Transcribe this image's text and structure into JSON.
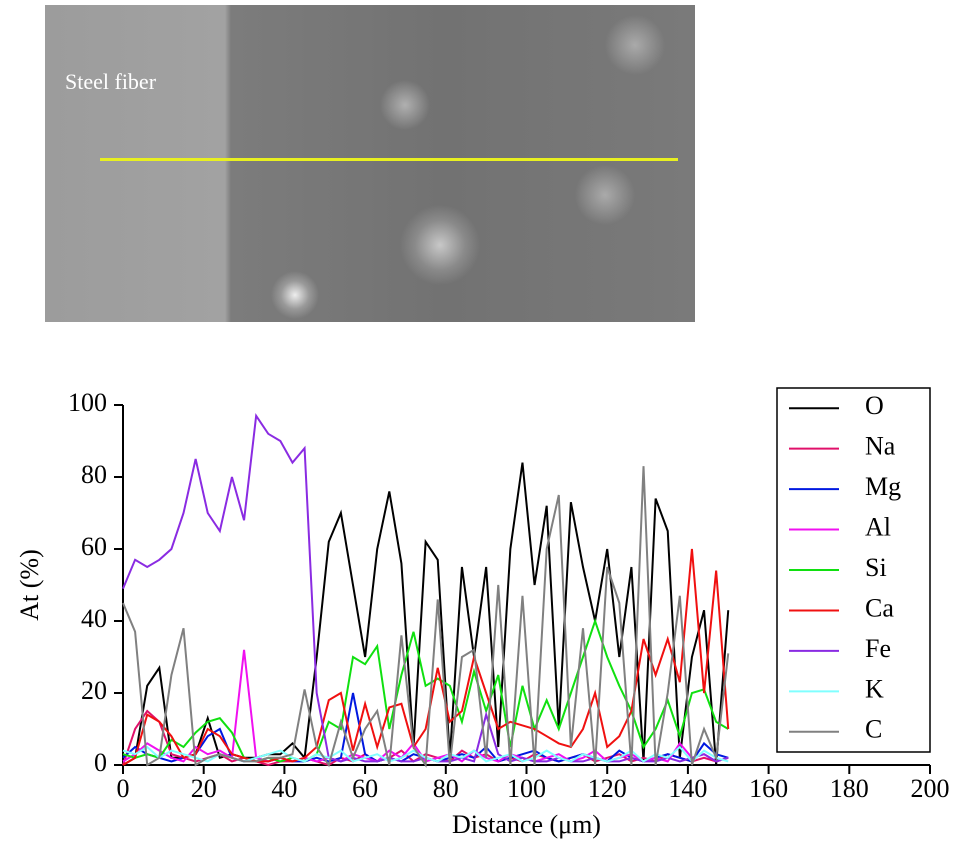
{
  "image": {
    "label": "Steel fiber"
  },
  "chart_data": {
    "type": "line",
    "xlabel": "Distance (μm)",
    "ylabel": "At (%)",
    "xlim": [
      0,
      200
    ],
    "xticks": [
      0,
      20,
      40,
      60,
      80,
      100,
      120,
      140,
      160,
      180,
      200
    ],
    "ylim": [
      0,
      100
    ],
    "yticks": [
      0,
      20,
      40,
      60,
      80,
      100
    ],
    "legend": "right",
    "x": [
      0,
      3,
      6,
      9,
      12,
      15,
      18,
      21,
      24,
      27,
      30,
      33,
      36,
      39,
      42,
      45,
      48,
      51,
      54,
      57,
      60,
      63,
      66,
      69,
      72,
      75,
      78,
      81,
      84,
      87,
      90,
      93,
      96,
      99,
      102,
      105,
      108,
      111,
      114,
      117,
      120,
      123,
      126,
      129,
      132,
      135,
      138,
      141,
      144,
      147,
      150
    ],
    "series": [
      {
        "name": "O",
        "color": "#000000",
        "values": [
          0,
          2,
          22,
          27,
          2,
          2,
          3,
          13,
          2,
          3,
          2,
          2,
          3,
          3,
          6,
          2,
          30,
          62,
          70,
          50,
          30,
          60,
          76,
          56,
          5,
          62,
          57,
          2,
          55,
          30,
          55,
          5,
          60,
          84,
          50,
          72,
          10,
          73,
          55,
          40,
          60,
          30,
          55,
          1,
          74,
          65,
          2,
          30,
          43,
          0,
          43
        ]
      },
      {
        "name": "Na",
        "color": "#e0106a",
        "values": [
          0,
          10,
          15,
          12,
          3,
          2,
          1,
          2,
          3,
          1,
          2,
          1,
          0,
          1,
          1,
          2,
          1,
          0,
          2,
          1,
          3,
          1,
          2,
          4,
          1,
          3,
          2,
          1,
          4,
          2,
          3,
          1,
          2,
          1,
          3,
          2,
          1,
          2,
          3,
          1,
          2,
          3,
          1,
          2,
          1,
          3,
          2,
          1,
          2,
          1,
          2
        ]
      },
      {
        "name": "Mg",
        "color": "#0018e0",
        "values": [
          2,
          5,
          3,
          2,
          1,
          2,
          3,
          8,
          10,
          2,
          1,
          2,
          1,
          2,
          1,
          1,
          2,
          1,
          2,
          20,
          3,
          1,
          2,
          1,
          3,
          2,
          1,
          2,
          3,
          2,
          5,
          1,
          2,
          3,
          4,
          2,
          1,
          2,
          3,
          2,
          1,
          4,
          2,
          1,
          2,
          3,
          2,
          1,
          6,
          3,
          2
        ]
      },
      {
        "name": "Al",
        "color": "#f010f0",
        "values": [
          1,
          3,
          6,
          4,
          2,
          1,
          5,
          3,
          4,
          2,
          32,
          2,
          1,
          2,
          1,
          2,
          1,
          2,
          1,
          3,
          2,
          1,
          4,
          2,
          6,
          1,
          2,
          3,
          1,
          4,
          2,
          1,
          3,
          2,
          1,
          2,
          3,
          1,
          2,
          4,
          1,
          2,
          3,
          1,
          2,
          1,
          6,
          2,
          3,
          1,
          2
        ]
      },
      {
        "name": "Si",
        "color": "#10e010",
        "values": [
          3,
          2,
          3,
          2,
          7,
          5,
          9,
          12,
          13,
          9,
          2,
          1,
          2,
          1,
          2,
          1,
          3,
          12,
          10,
          30,
          28,
          33,
          10,
          25,
          37,
          22,
          24,
          22,
          12,
          26,
          15,
          25,
          5,
          22,
          10,
          18,
          10,
          20,
          30,
          40,
          30,
          22,
          15,
          5,
          10,
          18,
          8,
          20,
          21,
          12,
          10
        ]
      },
      {
        "name": "Ca",
        "color": "#f01010",
        "values": [
          0,
          2,
          14,
          12,
          8,
          2,
          3,
          10,
          8,
          3,
          2,
          1,
          1,
          2,
          1,
          2,
          5,
          18,
          20,
          4,
          17,
          5,
          16,
          17,
          5,
          10,
          27,
          12,
          15,
          30,
          20,
          10,
          12,
          11,
          10,
          8,
          6,
          5,
          10,
          20,
          5,
          8,
          15,
          35,
          25,
          35,
          23,
          60,
          20,
          54,
          10
        ]
      },
      {
        "name": "Fe",
        "color": "#8a2be2",
        "values": [
          49,
          57,
          55,
          57,
          60,
          70,
          85,
          70,
          65,
          80,
          68,
          97,
          92,
          90,
          84,
          88,
          20,
          2,
          1,
          2,
          1,
          1,
          2,
          1,
          1,
          2,
          1,
          1,
          2,
          1,
          14,
          3,
          1,
          2,
          1,
          1,
          2,
          1,
          1,
          2,
          1,
          1,
          2,
          1,
          1,
          2,
          1,
          2,
          3,
          1,
          2
        ]
      },
      {
        "name": "K",
        "color": "#80ffff",
        "values": [
          4,
          3,
          5,
          2,
          4,
          3,
          2,
          1,
          3,
          2,
          1,
          2,
          3,
          4,
          2,
          1,
          3,
          2,
          4,
          1,
          2,
          3,
          1,
          2,
          4,
          2,
          1,
          3,
          2,
          4,
          1,
          2,
          3,
          1,
          2,
          4,
          2,
          1,
          3,
          2,
          1,
          2,
          4,
          1,
          3,
          2,
          5,
          1,
          4,
          2,
          1
        ]
      },
      {
        "name": "C",
        "color": "#808080",
        "values": [
          45,
          37,
          0,
          2,
          25,
          38,
          0,
          2,
          3,
          2,
          1,
          1,
          2,
          2,
          3,
          21,
          5,
          0,
          12,
          2,
          10,
          15,
          0,
          36,
          5,
          0,
          46,
          0,
          30,
          32,
          2,
          50,
          0,
          47,
          0,
          60,
          75,
          5,
          38,
          0,
          55,
          45,
          0,
          83,
          0,
          20,
          47,
          0,
          10,
          2,
          31
        ]
      }
    ]
  }
}
